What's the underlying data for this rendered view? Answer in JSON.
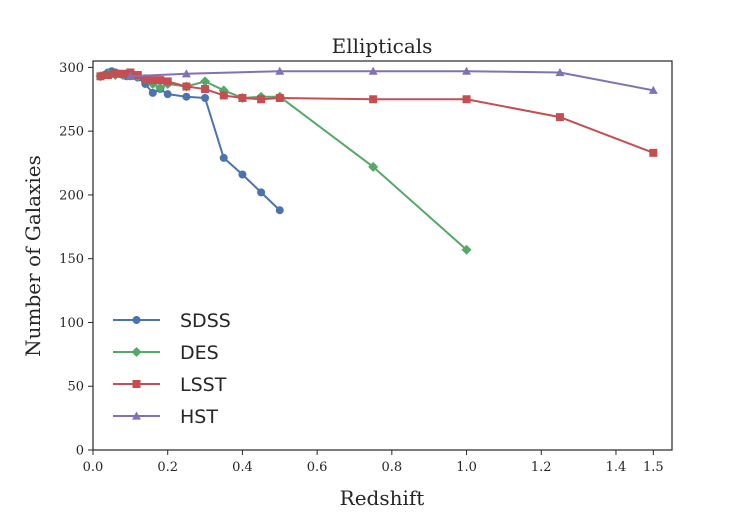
{
  "chart_data": {
    "type": "line",
    "title": "Ellipticals",
    "xlabel": "Redshift",
    "ylabel": "Number of Galaxies",
    "xlim": [
      0.0,
      1.55
    ],
    "ylim": [
      0,
      305
    ],
    "xticks": [
      0.0,
      0.2,
      0.4,
      0.6,
      0.8,
      1.0,
      1.2,
      1.4,
      1.5
    ],
    "xtick_labels": [
      "0.0",
      "0.2",
      "0.4",
      "0.6",
      "0.8",
      "1.0",
      "1.2",
      "1.4",
      "1.5"
    ],
    "yticks": [
      0,
      50,
      100,
      150,
      200,
      250,
      300
    ],
    "ytick_labels": [
      "0",
      "50",
      "100",
      "150",
      "200",
      "250",
      "300"
    ],
    "grid": false,
    "legend_position": "lower-left",
    "series": [
      {
        "name": "SDSS",
        "color": "#4c72b0",
        "marker": "circle",
        "x": [
          0.02,
          0.03,
          0.04,
          0.05,
          0.06,
          0.07,
          0.08,
          0.09,
          0.1,
          0.12,
          0.14,
          0.16,
          0.18,
          0.2,
          0.25,
          0.3,
          0.35,
          0.4,
          0.45,
          0.5
        ],
        "y": [
          293,
          294,
          296,
          297,
          296,
          295,
          294,
          293,
          293,
          292,
          287,
          280,
          283,
          279,
          277,
          276,
          229,
          216,
          202,
          188
        ]
      },
      {
        "name": "DES",
        "color": "#55a868",
        "marker": "diamond",
        "x": [
          0.02,
          0.04,
          0.06,
          0.08,
          0.1,
          0.12,
          0.14,
          0.16,
          0.18,
          0.2,
          0.25,
          0.3,
          0.35,
          0.4,
          0.45,
          0.5,
          0.75,
          1.0
        ],
        "y": [
          293,
          295,
          294,
          294,
          294,
          293,
          291,
          287,
          284,
          287,
          285,
          289,
          282,
          276,
          277,
          277,
          222,
          157
        ]
      },
      {
        "name": "LSST",
        "color": "#c44e52",
        "marker": "square",
        "x": [
          0.02,
          0.04,
          0.06,
          0.08,
          0.1,
          0.12,
          0.14,
          0.16,
          0.18,
          0.2,
          0.25,
          0.3,
          0.35,
          0.4,
          0.45,
          0.5,
          0.75,
          1.0,
          1.25,
          1.5
        ],
        "y": [
          293,
          294,
          295,
          295,
          296,
          294,
          291,
          290,
          290,
          289,
          285,
          283,
          278,
          276,
          275,
          276,
          275,
          275,
          261,
          233
        ]
      },
      {
        "name": "HST",
        "color": "#8172b2",
        "marker": "triangle",
        "x": [
          0.1,
          0.25,
          0.5,
          0.75,
          1.0,
          1.25,
          1.5
        ],
        "y": [
          293,
          295,
          297,
          297,
          297,
          296,
          282
        ]
      }
    ]
  }
}
